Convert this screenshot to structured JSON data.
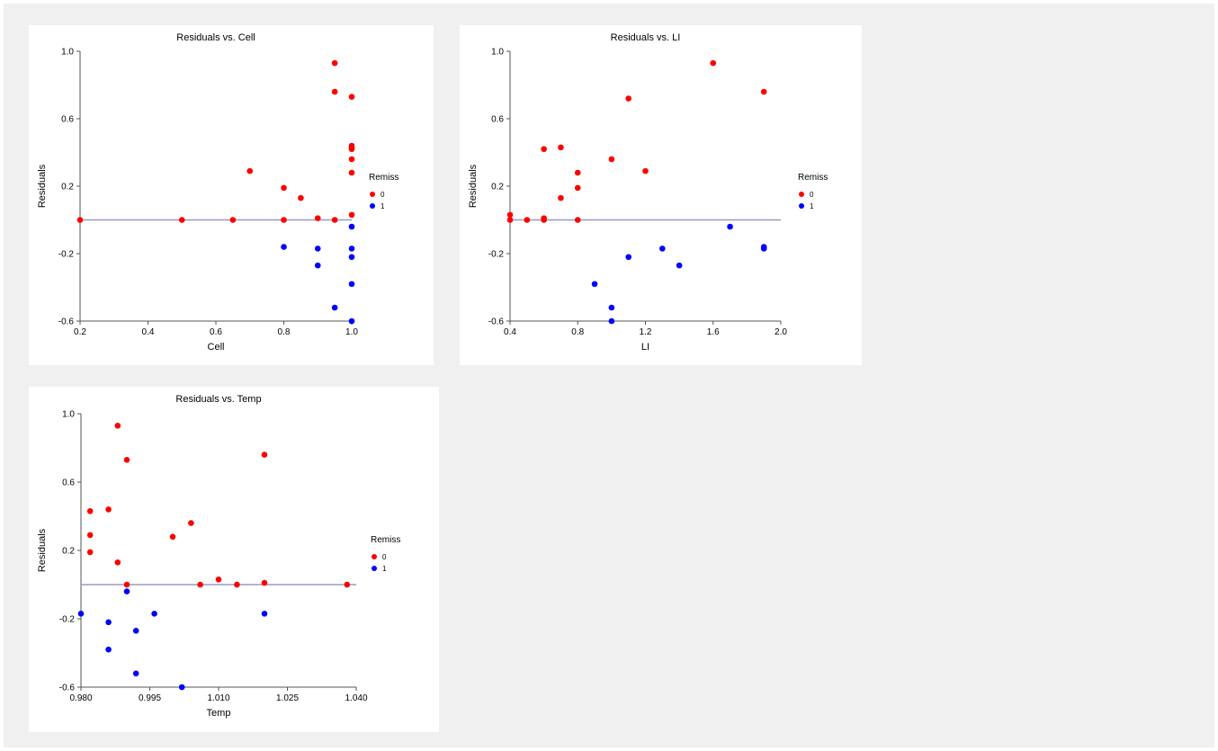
{
  "chart_data": [
    {
      "type": "scatter",
      "title": "Residuals vs. Cell",
      "xlabel": "Cell",
      "ylabel": "Residuals",
      "xlim": [
        0.2,
        1.0
      ],
      "ylim": [
        -0.6,
        1.0
      ],
      "xticks": [
        "0.2",
        "0.4",
        "0.6",
        "0.8",
        "1.0"
      ],
      "yticks": [
        "-0.6",
        "-0.2",
        "0.2",
        "0.6",
        "1.0"
      ],
      "reference_line_y": 0.0,
      "legend": {
        "title": "Remiss",
        "position": "right"
      },
      "series": [
        {
          "name": "0",
          "color": "#ff0000",
          "points": [
            [
              0.2,
              0.0
            ],
            [
              0.5,
              0.0
            ],
            [
              0.65,
              0.0
            ],
            [
              0.7,
              0.29
            ],
            [
              0.8,
              0.19
            ],
            [
              0.8,
              0.0
            ],
            [
              0.85,
              0.13
            ],
            [
              0.9,
              0.01
            ],
            [
              0.95,
              0.93
            ],
            [
              0.95,
              0.76
            ],
            [
              0.95,
              0.0
            ],
            [
              1.0,
              0.73
            ],
            [
              1.0,
              0.44
            ],
            [
              1.0,
              0.43
            ],
            [
              1.0,
              0.42
            ],
            [
              1.0,
              0.36
            ],
            [
              1.0,
              0.28
            ],
            [
              1.0,
              0.03
            ]
          ]
        },
        {
          "name": "1",
          "color": "#0000ff",
          "points": [
            [
              0.8,
              -0.16
            ],
            [
              0.9,
              -0.17
            ],
            [
              0.9,
              -0.27
            ],
            [
              0.95,
              -0.52
            ],
            [
              1.0,
              -0.04
            ],
            [
              1.0,
              -0.17
            ],
            [
              1.0,
              -0.22
            ],
            [
              1.0,
              -0.38
            ],
            [
              1.0,
              -0.6
            ]
          ]
        }
      ]
    },
    {
      "type": "scatter",
      "title": "Residuals vs. LI",
      "xlabel": "LI",
      "ylabel": "Residuals",
      "xlim": [
        0.4,
        2.0
      ],
      "ylim": [
        -0.6,
        1.0
      ],
      "xticks": [
        "0.4",
        "0.8",
        "1.2",
        "1.6",
        "2.0"
      ],
      "yticks": [
        "-0.6",
        "-0.2",
        "0.2",
        "0.6",
        "1.0"
      ],
      "reference_line_y": 0.0,
      "legend": {
        "title": "Remiss",
        "position": "right"
      },
      "series": [
        {
          "name": "0",
          "color": "#ff0000",
          "points": [
            [
              0.4,
              0.03
            ],
            [
              0.4,
              0.0
            ],
            [
              0.5,
              0.0
            ],
            [
              0.6,
              0.42
            ],
            [
              0.6,
              0.01
            ],
            [
              0.6,
              0.0
            ],
            [
              0.7,
              0.43
            ],
            [
              0.7,
              0.13
            ],
            [
              0.8,
              0.28
            ],
            [
              0.8,
              0.19
            ],
            [
              0.8,
              0.0
            ],
            [
              1.0,
              0.36
            ],
            [
              1.1,
              0.72
            ],
            [
              1.2,
              0.29
            ],
            [
              1.6,
              0.93
            ],
            [
              1.9,
              0.76
            ]
          ]
        },
        {
          "name": "1",
          "color": "#0000ff",
          "points": [
            [
              0.9,
              -0.38
            ],
            [
              1.0,
              -0.52
            ],
            [
              1.0,
              -0.6
            ],
            [
              1.1,
              -0.22
            ],
            [
              1.3,
              -0.17
            ],
            [
              1.4,
              -0.27
            ],
            [
              1.7,
              -0.04
            ],
            [
              1.9,
              -0.17
            ],
            [
              1.9,
              -0.16
            ]
          ]
        }
      ]
    },
    {
      "type": "scatter",
      "title": "Residuals vs. Temp",
      "xlabel": "Temp",
      "ylabel": "Residuals",
      "xlim": [
        0.98,
        1.04
      ],
      "ylim": [
        -0.6,
        1.0
      ],
      "xticks": [
        "0.980",
        "0.995",
        "1.010",
        "1.025",
        "1.040"
      ],
      "yticks": [
        "-0.6",
        "-0.2",
        "0.2",
        "0.6",
        "1.0"
      ],
      "reference_line_y": 0.0,
      "legend": {
        "title": "Remiss",
        "position": "right"
      },
      "series": [
        {
          "name": "0",
          "color": "#ff0000",
          "points": [
            [
              0.982,
              0.43
            ],
            [
              0.982,
              0.29
            ],
            [
              0.982,
              0.19
            ],
            [
              0.986,
              0.44
            ],
            [
              0.988,
              0.93
            ],
            [
              0.988,
              0.13
            ],
            [
              0.99,
              0.73
            ],
            [
              0.99,
              0.0
            ],
            [
              1.0,
              0.28
            ],
            [
              1.004,
              0.36
            ],
            [
              1.006,
              0.0
            ],
            [
              1.01,
              0.03
            ],
            [
              1.014,
              0.0
            ],
            [
              1.02,
              0.01
            ],
            [
              1.02,
              0.76
            ],
            [
              1.038,
              0.0
            ]
          ]
        },
        {
          "name": "1",
          "color": "#0000ff",
          "points": [
            [
              0.98,
              -0.17
            ],
            [
              0.986,
              -0.22
            ],
            [
              0.986,
              -0.38
            ],
            [
              0.99,
              -0.04
            ],
            [
              0.992,
              -0.27
            ],
            [
              0.992,
              -0.52
            ],
            [
              0.996,
              -0.17
            ],
            [
              1.002,
              -0.6
            ],
            [
              1.02,
              -0.17
            ]
          ]
        }
      ]
    }
  ]
}
